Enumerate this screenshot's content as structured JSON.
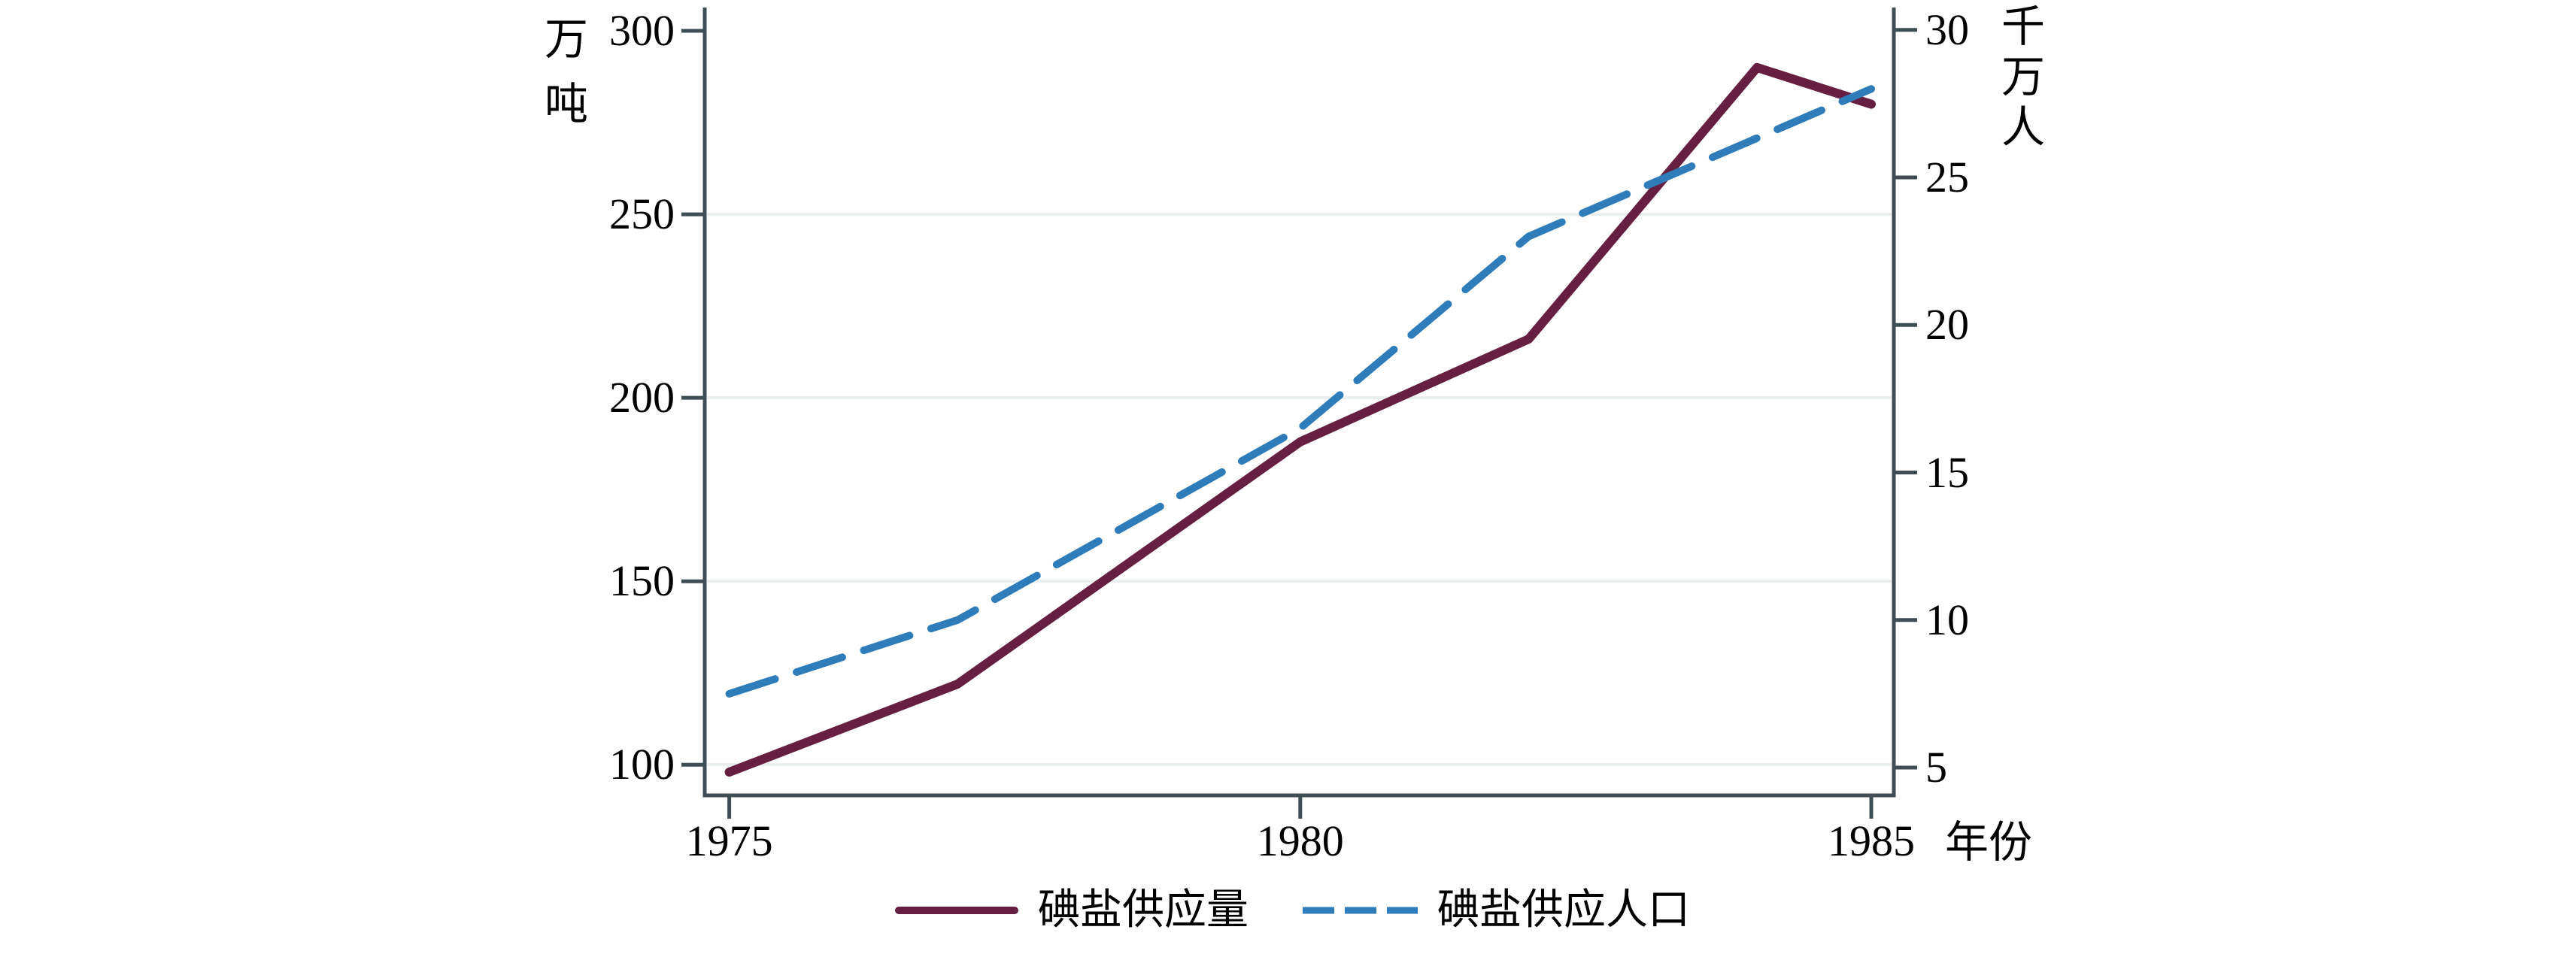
{
  "chart_data": {
    "type": "line",
    "title": "",
    "x": {
      "label": "年份",
      "tick_labels": [
        "1975",
        "1980",
        "1985"
      ],
      "tick_years": [
        1975,
        1980,
        1985
      ],
      "range": [
        1975,
        1985
      ]
    },
    "y_left": {
      "label": "万吨",
      "tick_labels": [
        "300",
        "250",
        "200",
        "150",
        "100"
      ],
      "tick_values": [
        300,
        250,
        200,
        150,
        100
      ],
      "range": [
        90,
        300
      ]
    },
    "y_right": {
      "label": "千万人",
      "tick_labels": [
        "30",
        "25",
        "20",
        "15",
        "10",
        "5"
      ],
      "tick_values": [
        30,
        25,
        20,
        15,
        10,
        5
      ],
      "range": [
        5,
        30
      ]
    },
    "grid": {
      "horizontal_at_left_values": [
        250,
        200,
        150,
        100
      ],
      "color": "#e9efee"
    },
    "series": [
      {
        "name": "碘盐供应量",
        "axis": "left",
        "style": "solid",
        "color": "#671f41",
        "x": [
          1975,
          1977,
          1980,
          1982,
          1984,
          1985
        ],
        "values": [
          98,
          122,
          188,
          216,
          290,
          280
        ]
      },
      {
        "name": "碘盐供应人口",
        "axis": "right",
        "style": "dashed",
        "color": "#2e7cba",
        "x": [
          1975,
          1977,
          1980,
          1982,
          1985
        ],
        "values": [
          7.5,
          10,
          16.5,
          23,
          28
        ]
      }
    ],
    "legend_position": "bottom-center",
    "axes_drawn": [
      "left",
      "right",
      "bottom"
    ]
  },
  "legend": {
    "items": [
      {
        "label": "碘盐供应量"
      },
      {
        "label": "碘盐供应人口"
      }
    ]
  },
  "colors": {
    "background": "#ffffff",
    "axis": "#3f4e54",
    "grid": "#e9efee",
    "text": "#000000",
    "series_supply": "#671f41",
    "series_population": "#2e7cba"
  }
}
